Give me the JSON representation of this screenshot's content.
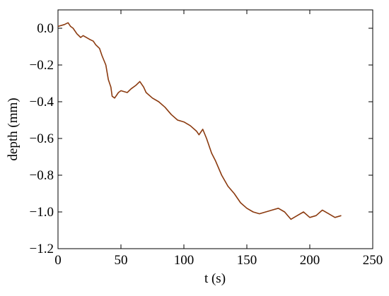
{
  "chart_data": {
    "type": "line",
    "x_label": "t (s)",
    "y_label": "depth (mm)",
    "xlim": [
      0,
      250
    ],
    "ylim": [
      -1.2,
      0.1
    ],
    "xticks": [
      0,
      50,
      100,
      150,
      200,
      250
    ],
    "yticks": [
      {
        "value": -1.2,
        "label": "−1.2"
      },
      {
        "value": -1.0,
        "label": "−1.0"
      },
      {
        "value": -0.8,
        "label": "−0.8"
      },
      {
        "value": -0.6,
        "label": "−0.6"
      },
      {
        "value": -0.4,
        "label": "−0.4"
      },
      {
        "value": -0.2,
        "label": "−0.2"
      },
      {
        "value": 0,
        "label": "0.0"
      }
    ],
    "color": "#8b3a0f",
    "x": [
      0,
      5,
      8,
      10,
      12,
      15,
      18,
      20,
      25,
      28,
      30,
      33,
      35,
      38,
      40,
      42,
      43,
      45,
      48,
      50,
      55,
      58,
      62,
      65,
      68,
      70,
      75,
      80,
      85,
      90,
      95,
      100,
      105,
      110,
      112,
      115,
      118,
      122,
      125,
      130,
      135,
      140,
      145,
      150,
      155,
      160,
      165,
      170,
      175,
      180,
      185,
      190,
      195,
      200,
      205,
      210,
      215,
      220,
      225
    ],
    "values": [
      0.01,
      0.02,
      0.03,
      0.01,
      0.0,
      -0.03,
      -0.05,
      -0.04,
      -0.06,
      -0.07,
      -0.09,
      -0.11,
      -0.15,
      -0.2,
      -0.28,
      -0.32,
      -0.37,
      -0.38,
      -0.35,
      -0.34,
      -0.35,
      -0.33,
      -0.31,
      -0.29,
      -0.32,
      -0.35,
      -0.38,
      -0.4,
      -0.43,
      -0.47,
      -0.5,
      -0.51,
      -0.53,
      -0.56,
      -0.58,
      -0.55,
      -0.6,
      -0.68,
      -0.72,
      -0.8,
      -0.86,
      -0.9,
      -0.95,
      -0.98,
      -1.0,
      -1.01,
      -1.0,
      -0.99,
      -0.98,
      -1.0,
      -1.04,
      -1.02,
      -1.0,
      -1.03,
      -1.02,
      -0.99,
      -1.01,
      -1.03,
      -1.02
    ]
  }
}
